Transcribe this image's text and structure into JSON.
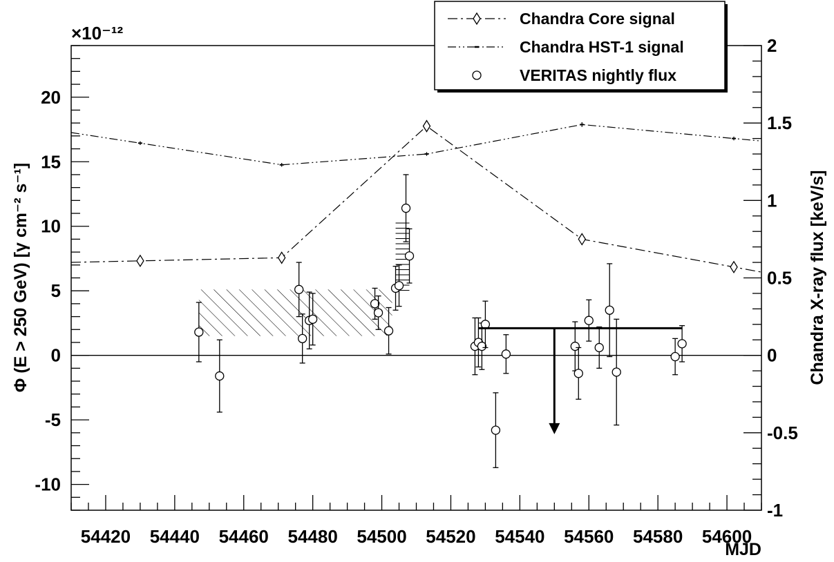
{
  "chart_data": {
    "type": "scatter",
    "title": "",
    "xlabel": "MJD",
    "ylabel": "Φ (E > 250 GeV) [γ cm⁻² s⁻¹]",
    "ylabel_right": "Chandra X-ray flux [keV/s]",
    "y_multiplier_label": "×10⁻¹²",
    "xlim": [
      54410,
      54610
    ],
    "ylim": [
      -12,
      24
    ],
    "ylim_right": [
      -1,
      2
    ],
    "x_ticks": [
      54420,
      54440,
      54460,
      54480,
      54500,
      54520,
      54540,
      54560,
      54580,
      54600
    ],
    "x_tick_labels": [
      "54420",
      "54440",
      "54460",
      "54480",
      "54500",
      "54520",
      "54540",
      "54560",
      "54580",
      "54600"
    ],
    "y_ticks": [
      -10,
      -5,
      0,
      5,
      10,
      15,
      20
    ],
    "y_tick_labels": [
      "-10",
      "-5",
      "0",
      "5",
      "10",
      "15",
      "20"
    ],
    "y_right_ticks": [
      -1,
      -0.5,
      0,
      0.5,
      1,
      1.5,
      2
    ],
    "y_right_tick_labels": [
      "-1",
      "-0.5",
      "0",
      "0.5",
      "1",
      "1.5",
      "2"
    ],
    "grid": false,
    "legend_position": "top-right",
    "legend": [
      {
        "label": "Chandra Core signal",
        "marker": "diamond",
        "style": "dash-dot"
      },
      {
        "label": "Chandra HST-1 signal",
        "marker": "small-dot",
        "style": "dash-dot-dot"
      },
      {
        "label": "VERITAS nightly flux",
        "marker": "open-circle",
        "style": "none"
      }
    ],
    "series": [
      {
        "name": "Chandra Core signal",
        "axis": "right",
        "x": [
          54430,
          54471,
          54513,
          54558,
          54602
        ],
        "y": [
          0.61,
          0.63,
          1.48,
          0.75,
          0.57
        ],
        "yerr": [
          0.01,
          0.01,
          0.02,
          0.01,
          0.01
        ]
      },
      {
        "name": "Chandra HST-1 signal",
        "axis": "right",
        "x": [
          54430,
          54471,
          54513,
          54558,
          54602
        ],
        "y": [
          1.37,
          1.23,
          1.3,
          1.49,
          1.4
        ],
        "yerr": [
          0.012,
          0.012,
          0.012,
          0.015,
          0.012
        ]
      },
      {
        "name": "VERITAS nightly flux",
        "axis": "left",
        "points": [
          {
            "x": 54447,
            "y": 1.8,
            "yerr": 2.3
          },
          {
            "x": 54453,
            "y": -1.6,
            "yerr": 2.8
          },
          {
            "x": 54476,
            "y": 5.1,
            "yerr": 2.1
          },
          {
            "x": 54477,
            "y": 1.3,
            "yerr": 1.9
          },
          {
            "x": 54479,
            "y": 2.7,
            "yerr": 2.2
          },
          {
            "x": 54480,
            "y": 2.8,
            "yerr": 2.0
          },
          {
            "x": 54498,
            "y": 4.0,
            "yerr": 1.2
          },
          {
            "x": 54499,
            "y": 3.3,
            "yerr": 1.3
          },
          {
            "x": 54502,
            "y": 1.9,
            "yerr": 1.8
          },
          {
            "x": 54504,
            "y": 5.2,
            "yerr": 1.7
          },
          {
            "x": 54505,
            "y": 5.4,
            "yerr": 1.6
          },
          {
            "x": 54507,
            "y": 11.4,
            "yerr": 2.6
          },
          {
            "x": 54508,
            "y": 7.7,
            "yerr": 2.1
          },
          {
            "x": 54527,
            "y": 0.7,
            "yerr": 2.2
          },
          {
            "x": 54528,
            "y": 1.0,
            "yerr": 1.9
          },
          {
            "x": 54529,
            "y": 0.7,
            "yerr": 1.8
          },
          {
            "x": 54530,
            "y": 2.4,
            "yerr": 1.8
          },
          {
            "x": 54533,
            "y": -5.8,
            "yerr": 2.9
          },
          {
            "x": 54536,
            "y": 0.1,
            "yerr": 1.5
          },
          {
            "x": 54556,
            "y": 0.7,
            "yerr": 1.9
          },
          {
            "x": 54557,
            "y": -1.4,
            "yerr": 2.0
          },
          {
            "x": 54560,
            "y": 2.7,
            "yerr": 1.6
          },
          {
            "x": 54563,
            "y": 0.6,
            "yerr": 1.6
          },
          {
            "x": 54566,
            "y": 3.5,
            "yerr": 3.6
          },
          {
            "x": 54568,
            "y": -1.3,
            "yerr": 4.1
          },
          {
            "x": 54585,
            "y": -0.1,
            "yerr": 1.4
          },
          {
            "x": 54587,
            "y": 0.9,
            "yerr": 1.4
          }
        ]
      }
    ],
    "bands": [
      {
        "pattern": "diagonal-hatch",
        "x": [
          54447,
          54503
        ],
        "y": [
          1.5,
          5.1
        ]
      },
      {
        "pattern": "horizontal-hatch",
        "x": [
          54504,
          54508
        ],
        "y": [
          5.0,
          10.3
        ]
      }
    ],
    "upper_limit": {
      "x": [
        54528,
        54587
      ],
      "y": 2.1,
      "arrow_x": 54550,
      "arrow_to": -6.0
    }
  }
}
